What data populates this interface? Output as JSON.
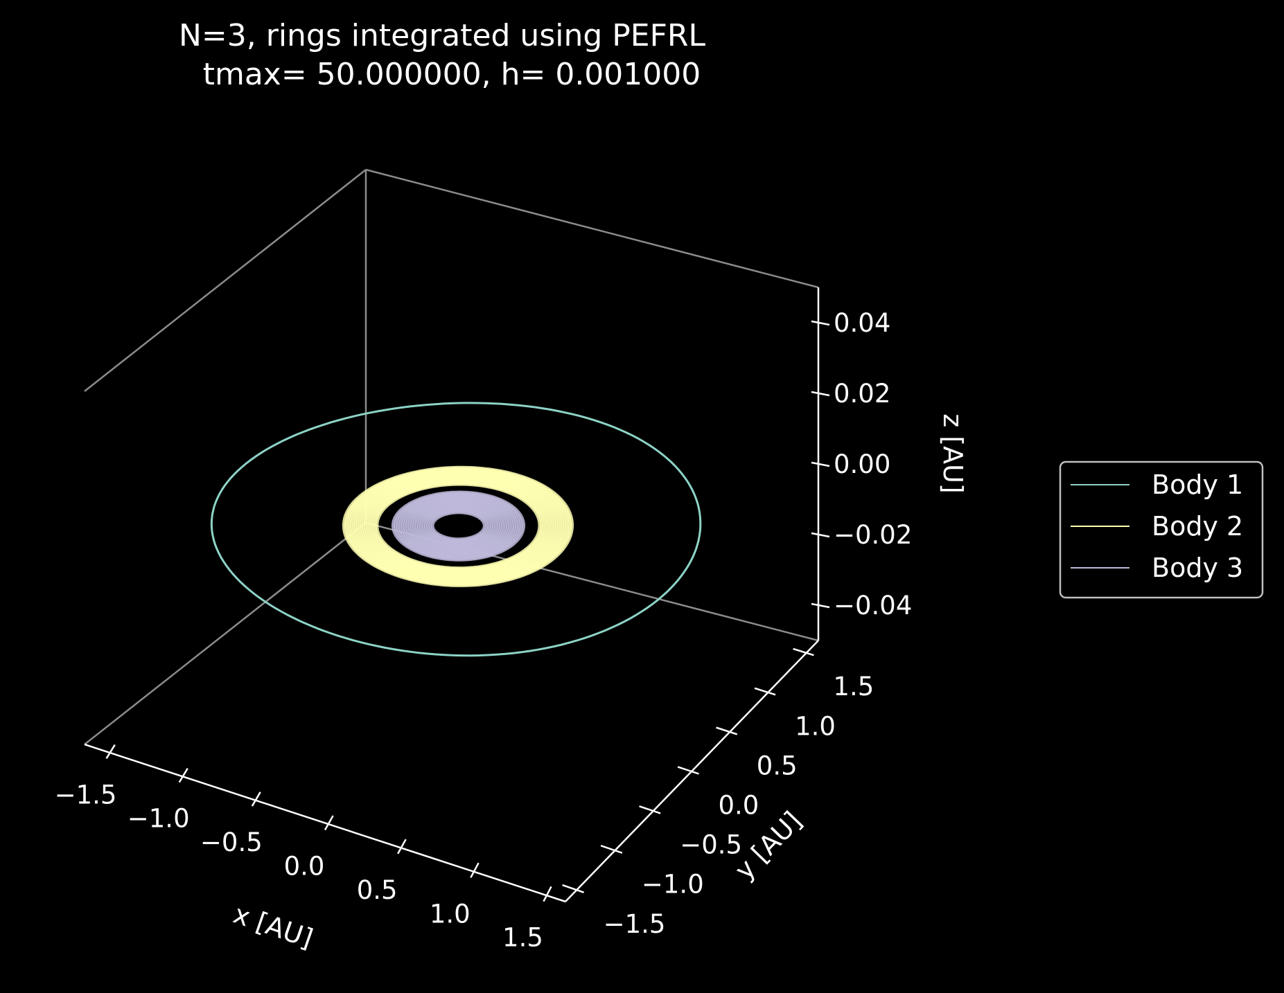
{
  "chart_data": {
    "type": "line",
    "projection": "3d",
    "title_line1": "N=3, rings integrated using PEFRL",
    "title_line2": "tmax= 50.000000, h= 0.001000",
    "xlabel": "x [AU]",
    "ylabel": "y [AU]",
    "zlabel": "z [AU]",
    "xlim": [
      -1.65,
      1.65
    ],
    "ylim": [
      -1.65,
      1.65
    ],
    "zlim": [
      -0.05,
      0.05
    ],
    "x_ticks": [
      "−1.5",
      "−1.0",
      "−0.5",
      "0.0",
      "0.5",
      "1.0",
      "1.5"
    ],
    "x_tick_values": [
      -1.5,
      -1.0,
      -0.5,
      0.0,
      0.5,
      1.0,
      1.5
    ],
    "y_ticks": [
      "−1.5",
      "−1.0",
      "−0.5",
      "0.0",
      "0.5",
      "1.0",
      "1.5"
    ],
    "y_tick_values": [
      -1.5,
      -1.0,
      -0.5,
      0.0,
      0.5,
      1.0,
      1.5
    ],
    "z_ticks": [
      "−0.04",
      "−0.02",
      "0.00",
      "0.02",
      "0.04"
    ],
    "z_tick_values": [
      -0.04,
      -0.02,
      0.0,
      0.02,
      0.04
    ],
    "background": "#000000",
    "grid": false,
    "legend_position": "right",
    "series": [
      {
        "name": "Body 1",
        "color": "#8dd3c7",
        "orbit_radius_au": [
          1.5,
          1.5
        ],
        "z": 0.0
      },
      {
        "name": "Body 2",
        "color": "#ffffb3",
        "orbit_radius_au": [
          0.5,
          0.7
        ],
        "z": 0.0
      },
      {
        "name": "Body 3",
        "color": "#bebada",
        "orbit_radius_au": [
          0.16,
          0.4
        ],
        "z": 0.0
      }
    ]
  }
}
